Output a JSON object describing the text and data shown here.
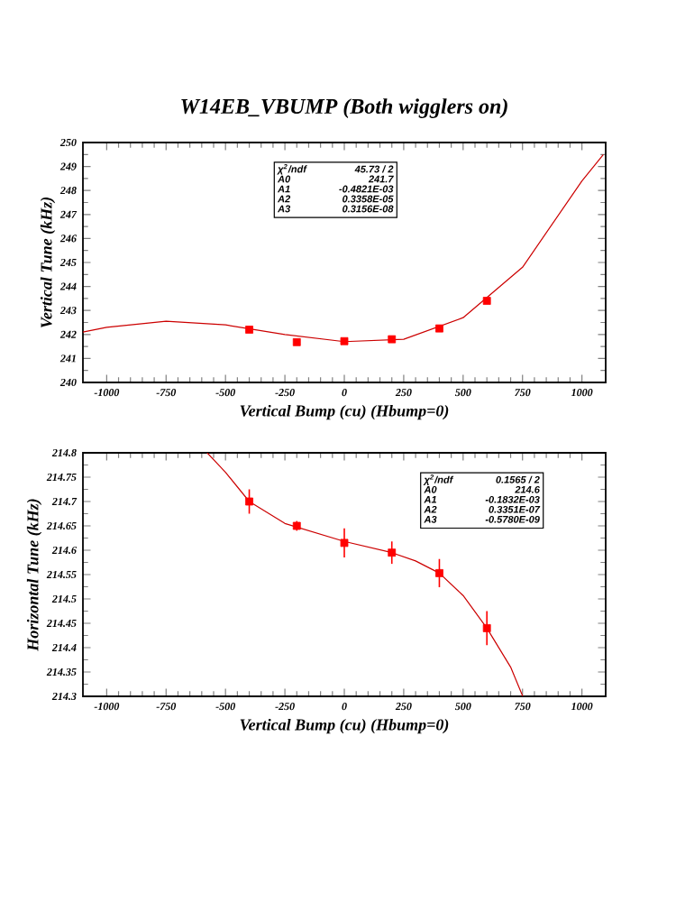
{
  "chart_data": [
    {
      "type": "scatter",
      "title": "W14EB_VBUMP (Both wigglers on)",
      "xlabel": "Vertical Bump (cu) (Hbump=0)",
      "ylabel": "Vertical Tune (kHz)",
      "xlim": [
        -1100,
        1100
      ],
      "ylim": [
        240,
        250
      ],
      "xticks": [
        -1000,
        -750,
        -500,
        -250,
        0,
        250,
        500,
        750,
        1000
      ],
      "yticks": [
        240,
        241,
        242,
        243,
        244,
        245,
        246,
        247,
        248,
        249,
        250
      ],
      "series": [
        {
          "type": "line",
          "color": "#cc0000",
          "x": [
            -1100,
            -1000,
            -750,
            -500,
            -250,
            0,
            250,
            500,
            750,
            1000,
            1090
          ],
          "values": [
            242.1,
            242.3,
            242.55,
            242.4,
            242.0,
            241.7,
            241.8,
            242.7,
            244.8,
            248.4,
            249.5
          ]
        },
        {
          "type": "scatter",
          "marker": "square",
          "color": "#ff0000",
          "x": [
            -400,
            -200,
            0,
            200,
            400,
            600
          ],
          "values": [
            242.2,
            241.68,
            241.72,
            241.8,
            242.25,
            243.4
          ]
        }
      ],
      "annotations": [
        "χ$^{2}$/ndf",
        "45.73 / 2",
        "A0",
        "241.7",
        "A1",
        "-0.4821E-03",
        "A2",
        "0.3358E-05",
        "A3",
        "0.3156E-08"
      ]
    },
    {
      "type": "scatter",
      "xlabel": "Vertical Bump (cu) (Hbump=0)",
      "ylabel": "Horizontal Tune (kHz)",
      "xlim": [
        -1100,
        1100
      ],
      "ylim": [
        214.3,
        214.8
      ],
      "xticks": [
        -1000,
        -750,
        -500,
        -250,
        0,
        250,
        500,
        750,
        1000
      ],
      "yticks": [
        214.3,
        214.35,
        214.4,
        214.45,
        214.5,
        214.55,
        214.6,
        214.65,
        214.7,
        214.75,
        214.8
      ],
      "series": [
        {
          "type": "line",
          "color": "#cc0000",
          "x": [
            -577,
            -500,
            -400,
            -250,
            0,
            200,
            300,
            400,
            500,
            600,
            700,
            751
          ],
          "values": [
            214.8,
            214.76,
            214.7,
            214.655,
            214.618,
            214.595,
            214.578,
            214.553,
            214.507,
            214.44,
            214.36,
            214.3
          ]
        },
        {
          "type": "scatter",
          "marker": "square",
          "color": "#ff0000",
          "x": [
            -400,
            -200,
            0,
            200,
            400,
            600
          ],
          "values": [
            214.7,
            214.65,
            214.615,
            214.595,
            214.553,
            214.44
          ],
          "errors": [
            0.025,
            0.01,
            0.03,
            0.023,
            0.029,
            0.035
          ]
        }
      ],
      "annotations": [
        "χ$^{2}$/ndf",
        "0.1565 / 2",
        "A0",
        "214.6",
        "A1",
        "-0.1832E-03",
        "A2",
        "0.3351E-07",
        "A3",
        "-0.5780E-09"
      ]
    }
  ]
}
